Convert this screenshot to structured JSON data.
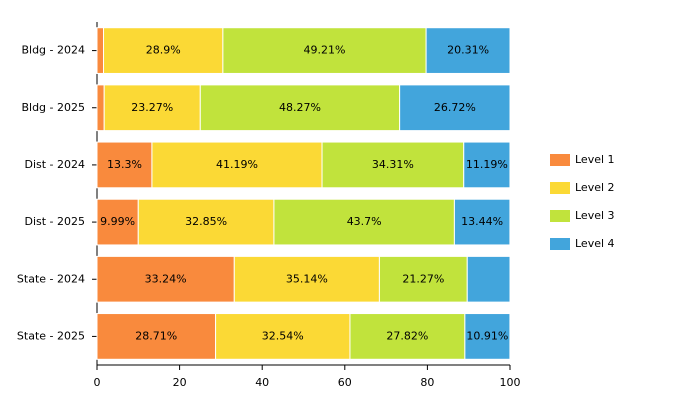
{
  "chart_data": {
    "type": "stacked-bar-horizontal",
    "categories": [
      "Bldg - 2024",
      "Bldg - 2025",
      "Dist - 2024",
      "Dist - 2025",
      "State - 2024",
      "State - 2025"
    ],
    "series": [
      {
        "name": "Level 1",
        "color": "#f98a3d",
        "values": [
          1.58,
          1.74,
          13.3,
          9.99,
          33.24,
          28.71
        ],
        "value_labels": [
          null,
          null,
          "13.3%",
          "9.99%",
          "33.24%",
          "28.71%"
        ]
      },
      {
        "name": "Level 2",
        "color": "#fbd935",
        "values": [
          28.9,
          23.27,
          41.19,
          32.85,
          35.14,
          32.54
        ],
        "value_labels": [
          "28.9%",
          "23.27%",
          "41.19%",
          "32.85%",
          "35.14%",
          "32.54%"
        ]
      },
      {
        "name": "Level 3",
        "color": "#c1e33c",
        "values": [
          49.21,
          48.27,
          34.31,
          43.7,
          21.27,
          27.82
        ],
        "value_labels": [
          "49.21%",
          "48.27%",
          "34.31%",
          "43.7%",
          "21.27%",
          "27.82%"
        ]
      },
      {
        "name": "Level 4",
        "color": "#42a5dc",
        "values": [
          20.31,
          26.72,
          11.19,
          13.44,
          10.35,
          10.91
        ],
        "value_labels": [
          "20.31%",
          "26.72%",
          "11.19%",
          "13.44%",
          null,
          "10.91%"
        ]
      }
    ],
    "xlim": [
      0,
      100
    ],
    "xticks": [
      0,
      20,
      40,
      60,
      80,
      100
    ],
    "legend": "right"
  }
}
